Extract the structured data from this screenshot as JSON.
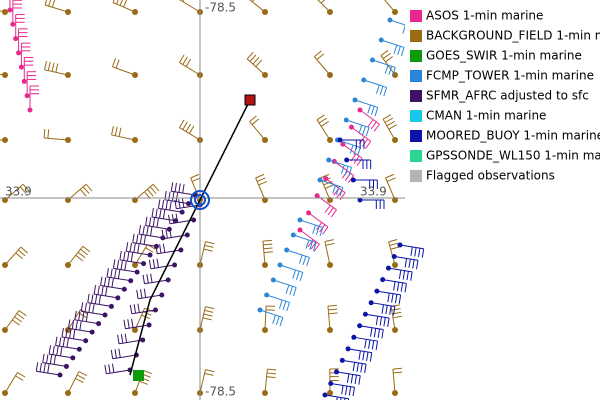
{
  "map": {
    "crosshair_labels": {
      "top": "-78.5",
      "bottom": "-78.5",
      "left": "33.9",
      "right": "33.9"
    }
  },
  "legend": {
    "items": [
      {
        "label": "ASOS 1-min marine",
        "color": "#e8288c"
      },
      {
        "label": "BACKGROUND_FIELD 1-min m",
        "color": "#9a6a14"
      },
      {
        "label": "GOES_SWIR 1-min marine",
        "color": "#0a9a0a"
      },
      {
        "label": "FCMP_TOWER 1-min marine",
        "color": "#2a86d8"
      },
      {
        "label": "SFMR_AFRC adjusted to sfc",
        "color": "#3c1464"
      },
      {
        "label": "CMAN 1-min marine",
        "color": "#14c8e8"
      },
      {
        "label": "MOORED_BUOY 1-min marine",
        "color": "#0a14a8"
      },
      {
        "label": "GPSSONDE_WL150 1-min mar",
        "color": "#28d890"
      },
      {
        "label": "Flagged observations",
        "color": "#b4b4b4"
      }
    ]
  }
}
